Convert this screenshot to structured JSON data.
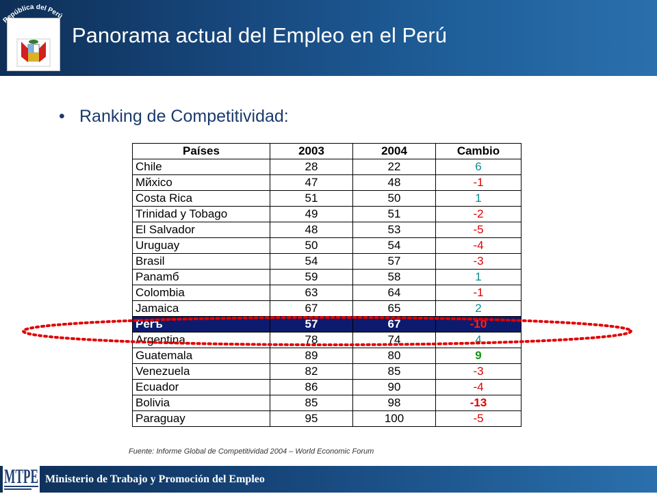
{
  "header": {
    "title": "Panorama actual del Empleo en el Perú",
    "logo_text": "República del Perú"
  },
  "bullet": {
    "symbol": "•",
    "text": "Ranking de Competitividad:"
  },
  "table": {
    "headers": [
      "Países",
      "2003",
      "2004",
      "Cambio"
    ],
    "rows": [
      {
        "country": "Chile",
        "y2003": "28",
        "y2004": "22",
        "change": "6",
        "color": "#0a8a8a",
        "bold": false
      },
      {
        "country": "Мйхico",
        "y2003": "47",
        "y2004": "48",
        "change": "-1",
        "color": "#e00000",
        "bold": false
      },
      {
        "country": "Costa Rica",
        "y2003": "51",
        "y2004": "50",
        "change": "1",
        "color": "#0a8a8a",
        "bold": false
      },
      {
        "country": "Trinidad y Tobago",
        "y2003": "49",
        "y2004": "51",
        "change": "-2",
        "color": "#e00000",
        "bold": false
      },
      {
        "country": "El Salvador",
        "y2003": "48",
        "y2004": "53",
        "change": "-5",
        "color": "#e00000",
        "bold": false
      },
      {
        "country": "Uruguay",
        "y2003": "50",
        "y2004": "54",
        "change": "-4",
        "color": "#e00000",
        "bold": false
      },
      {
        "country": "Brasil",
        "y2003": "54",
        "y2004": "57",
        "change": "-3",
        "color": "#e00000",
        "bold": false
      },
      {
        "country": "Panamб",
        "y2003": "59",
        "y2004": "58",
        "change": "1",
        "color": "#0a8a8a",
        "bold": false
      },
      {
        "country": "Colombia",
        "y2003": "63",
        "y2004": "64",
        "change": "-1",
        "color": "#e00000",
        "bold": false
      },
      {
        "country": "Jamaica",
        "y2003": "67",
        "y2004": "65",
        "change": "2",
        "color": "#0a8a8a",
        "bold": false
      },
      {
        "country": "Perъ",
        "y2003": "57",
        "y2004": "67",
        "change": "-10",
        "color": "#ff2020",
        "bold": true,
        "highlight": true
      },
      {
        "country": "Argentina",
        "y2003": "78",
        "y2004": "74",
        "change": "4",
        "color": "#0a8a8a",
        "bold": false
      },
      {
        "country": "Guatemala",
        "y2003": "89",
        "y2004": "80",
        "change": "9",
        "color": "#0a9a0a",
        "bold": true
      },
      {
        "country": "Venezuela",
        "y2003": "82",
        "y2004": "85",
        "change": "-3",
        "color": "#e00000",
        "bold": false
      },
      {
        "country": "Ecuador",
        "y2003": "86",
        "y2004": "90",
        "change": "-4",
        "color": "#e00000",
        "bold": false
      },
      {
        "country": "Bolivia",
        "y2003": "85",
        "y2004": "98",
        "change": "-13",
        "color": "#e00000",
        "bold": true
      },
      {
        "country": "Paraguay",
        "y2003": "95",
        "y2004": "100",
        "change": "-5",
        "color": "#e00000",
        "bold": false
      }
    ]
  },
  "source": "Fuente:  Informe Global de Competitividad 2004 – World Economic Forum",
  "footer": {
    "logo_text": "MTPE",
    "text": "Ministerio de Trabajo y Promoción del Empleo"
  },
  "colors": {
    "header_bg": "#17477c",
    "highlight_row": "#0d1b6e",
    "ellipse": "#e00000",
    "positive": "#0a8a8a",
    "negative": "#e00000"
  }
}
